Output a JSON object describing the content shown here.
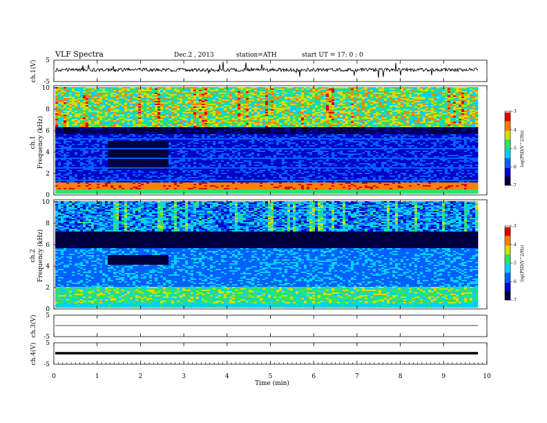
{
  "header": {
    "title": "VLF Spectra",
    "date": "Dec.2 , 2013",
    "station": "station=ATH",
    "start": "start UT = 17: 0 : 0"
  },
  "chart_data": [
    {
      "type": "line",
      "panel": "ch1",
      "ylabel": "ch.1(V)",
      "ylim": [
        -5,
        5
      ],
      "yticks": [
        "5",
        "-5"
      ],
      "xlim": [
        0,
        10
      ],
      "series": [
        {
          "values_summary": "noisy trace around -0.2 V, spikes to about +/-2 V"
        }
      ]
    },
    {
      "type": "heatmap",
      "panel": "ch1-spectrogram",
      "ylabel": "ch.1 Frequency (kHz)",
      "ylim": [
        0,
        10
      ],
      "yticks": [
        "0",
        "2",
        "4",
        "6",
        "8",
        "10"
      ],
      "xlim": [
        0,
        9.8
      ],
      "colorbar": {
        "label": "log(PSD(V^2/Hz)",
        "ticks": [
          "-3",
          "-4",
          "-5",
          "-6",
          "-7"
        ],
        "range": [
          -7,
          -3
        ]
      },
      "features": "broadband high PSD above 6 kHz; quiet band 1.2-2.6 min from 2-5 kHz; strong low-frequency lines below 1 kHz"
    },
    {
      "type": "heatmap",
      "panel": "ch2-spectrogram",
      "ylabel": "ch.2 Frequency (kHz)",
      "ylim": [
        0,
        10
      ],
      "yticks": [
        "0",
        "2",
        "4",
        "6",
        "8",
        "10"
      ],
      "xlim": [
        0,
        9.8
      ],
      "colorbar": {
        "label": "log(PSD(V^2/Hz)",
        "ticks": [
          "-3",
          "-4",
          "-5",
          "-6",
          "-7"
        ],
        "range": [
          -7,
          -3
        ]
      },
      "features": "dark band 6-7 kHz; mixed activity above 7 kHz; stronger PSD below 2 kHz"
    },
    {
      "type": "line",
      "panel": "ch3",
      "ylabel": "ch.3(V)",
      "ylim": [
        -5,
        5
      ],
      "yticks": [
        "5",
        "-5"
      ],
      "series": [
        {
          "values_summary": "flat near -1 V"
        }
      ]
    },
    {
      "type": "line",
      "panel": "ch4",
      "ylabel": "ch.4(V)",
      "ylim": [
        -5,
        5
      ],
      "yticks": [
        "5",
        "-5"
      ],
      "series": [
        {
          "values_summary": "thick flat trace near -1 V"
        }
      ]
    }
  ],
  "xaxis": {
    "label": "Time (min)",
    "ticks": [
      "0",
      "1",
      "2",
      "3",
      "4",
      "5",
      "6",
      "7",
      "8",
      "9",
      "10"
    ],
    "range": [
      0,
      10
    ]
  },
  "colors": {
    "colormap": [
      "#000040",
      "#0000c8",
      "#0060ff",
      "#00d0ff",
      "#30e070",
      "#d0e000",
      "#ff8000",
      "#e00000",
      "#ffffff"
    ]
  }
}
